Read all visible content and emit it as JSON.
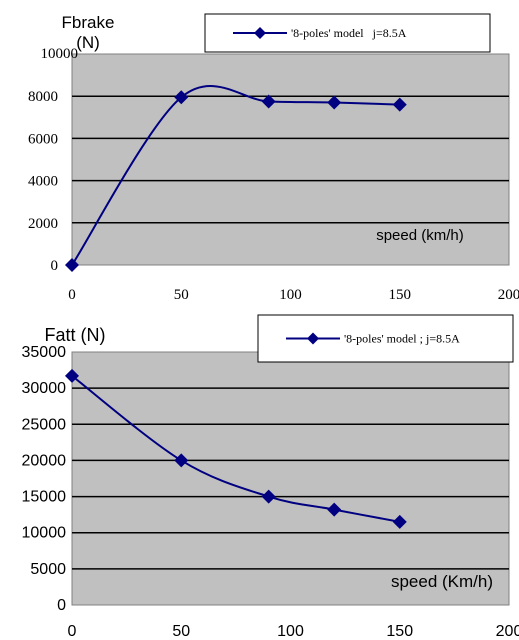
{
  "chart_data": [
    {
      "type": "line",
      "ylabel": "Fbrake\n(N)",
      "xlabel": "speed (km/h)",
      "xlim": [
        0,
        200
      ],
      "ylim": [
        0,
        10000
      ],
      "xticks": [
        "0",
        "50",
        "100",
        "150",
        "200"
      ],
      "yticks": [
        "0",
        "2000",
        "4000",
        "6000",
        "8000",
        "10000"
      ],
      "grid": true,
      "legend_position": "top-right",
      "series": [
        {
          "name": "'8-poles' model   j=8.5A",
          "x": [
            0,
            50,
            90,
            120,
            150
          ],
          "y": [
            0,
            7950,
            7750,
            7700,
            7600
          ]
        }
      ],
      "colors": {
        "plot_bg": "#c0c0c0",
        "line": "#000080",
        "grid": "#000000"
      }
    },
    {
      "type": "line",
      "ylabel": "Fatt (N)",
      "xlabel": "speed (Km/h)",
      "xlim": [
        0,
        200
      ],
      "ylim": [
        0,
        35000
      ],
      "xticks": [
        "0",
        "50",
        "100",
        "150",
        "200"
      ],
      "yticks": [
        "0",
        "5000",
        "10000",
        "15000",
        "20000",
        "25000",
        "30000",
        "35000"
      ],
      "grid": true,
      "legend_position": "top-right",
      "series": [
        {
          "name": "'8-poles' model ; j=8.5A",
          "x": [
            0,
            50,
            90,
            120,
            150
          ],
          "y": [
            31700,
            20000,
            15000,
            13200,
            11500
          ]
        }
      ],
      "colors": {
        "plot_bg": "#c0c0c0",
        "line": "#000080",
        "grid": "#000000"
      }
    }
  ]
}
